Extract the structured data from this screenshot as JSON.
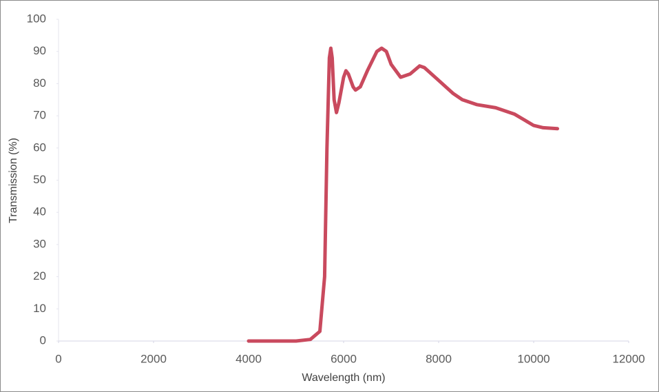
{
  "chart_data": {
    "type": "line",
    "x_label": "Wavelength (nm)",
    "y_label": "Transmission (%)",
    "series": [
      {
        "name": "Transmission",
        "color": "#c94a5e",
        "x": [
          4000,
          4500,
          5000,
          5300,
          5500,
          5600,
          5650,
          5700,
          5730,
          5760,
          5800,
          5850,
          5900,
          6000,
          6050,
          6100,
          6200,
          6250,
          6350,
          6500,
          6700,
          6800,
          6900,
          7000,
          7200,
          7400,
          7600,
          7700,
          8000,
          8300,
          8500,
          8800,
          9200,
          9600,
          10000,
          10200,
          10500
        ],
        "values": [
          0,
          0,
          0,
          0.5,
          3,
          20,
          60,
          88,
          91,
          88,
          75,
          71,
          74,
          82,
          84,
          83,
          79,
          78,
          79,
          84,
          90,
          91,
          90,
          86,
          82,
          83,
          85.5,
          85,
          81,
          77,
          75,
          73.5,
          72.5,
          70.5,
          67,
          66.3,
          66
        ]
      }
    ],
    "xlim": [
      0,
      12000
    ],
    "xticks": [
      0,
      2000,
      4000,
      6000,
      8000,
      10000,
      12000
    ],
    "ylim": [
      0,
      100
    ],
    "yticks": [
      0,
      10,
      20,
      30,
      40,
      50,
      60,
      70,
      80,
      90,
      100
    ],
    "grid": false
  }
}
